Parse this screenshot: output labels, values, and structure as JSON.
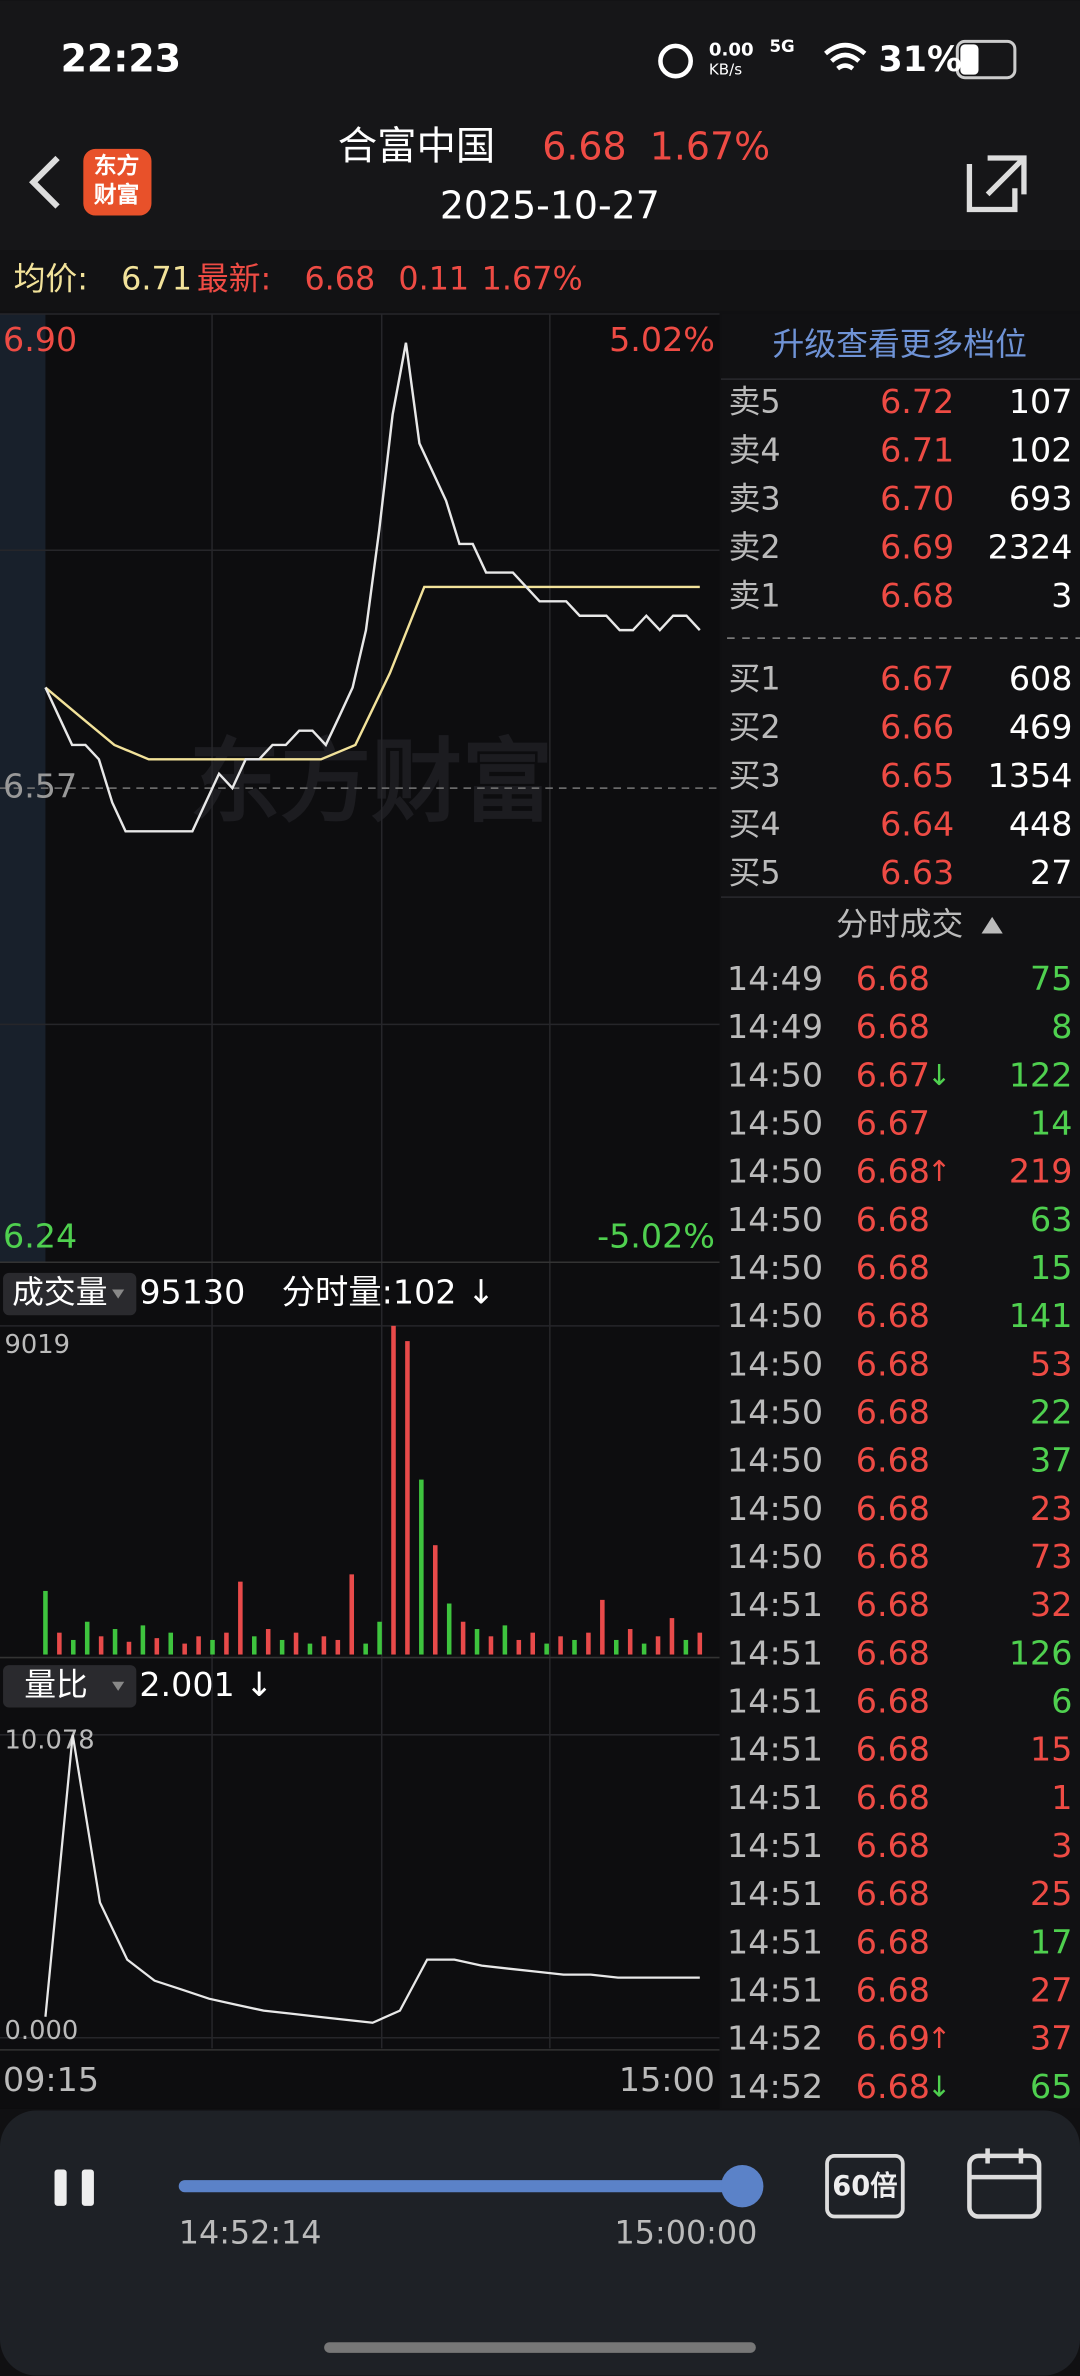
{
  "status_bar": {
    "time": "22:23",
    "net_speed": "0.00",
    "net_unit": "KB/s",
    "signal": "5G",
    "battery": "31%"
  },
  "header": {
    "logo": [
      "东方",
      "财富"
    ],
    "name": "合富中国",
    "price": "6.68",
    "change_pct": "1.67%",
    "date": "2025-10-27"
  },
  "summary": {
    "avg_label": "均价:",
    "avg": "6.71",
    "last_label": "最新:",
    "last": "6.68",
    "change": "0.11",
    "change_pct": "1.67%"
  },
  "price_chart": {
    "watermark": "东方财富",
    "ylim": [
      6.24,
      6.9
    ],
    "yticks": [
      {
        "value": 6.9,
        "label": "6.90"
      },
      {
        "value": 6.57,
        "label": "6.57"
      },
      {
        "value": 6.24,
        "label": "6.24"
      }
    ],
    "top_pct": "5.02%",
    "bottom_pct": "-5.02%",
    "price_color": "#e8e8e8",
    "avg_color": "#f2e29a",
    "price": [
      6.64,
      6.62,
      6.6,
      6.6,
      6.59,
      6.56,
      6.54,
      6.54,
      6.54,
      6.54,
      6.54,
      6.54,
      6.56,
      6.58,
      6.57,
      6.59,
      6.59,
      6.6,
      6.6,
      6.61,
      6.61,
      6.6,
      6.62,
      6.64,
      6.68,
      6.75,
      6.83,
      6.88,
      6.81,
      6.79,
      6.77,
      6.74,
      6.74,
      6.72,
      6.72,
      6.72,
      6.71,
      6.7,
      6.7,
      6.7,
      6.69,
      6.69,
      6.69,
      6.68,
      6.68,
      6.69,
      6.68,
      6.69,
      6.69,
      6.68
    ],
    "avg": [
      6.64,
      6.62,
      6.6,
      6.59,
      6.59,
      6.59,
      6.59,
      6.59,
      6.59,
      6.6,
      6.65,
      6.71,
      6.71,
      6.71,
      6.71,
      6.71,
      6.71,
      6.71,
      6.71,
      6.71
    ]
  },
  "volume": {
    "label": "成交量",
    "total": "95130",
    "sub": "分时量:102 ↓",
    "ylim": [
      0,
      9019
    ],
    "yticks": [
      9019
    ],
    "values": [
      1745,
      600,
      400,
      900,
      500,
      700,
      350,
      800,
      450,
      600,
      300,
      500,
      400,
      600,
      2000,
      500,
      700,
      400,
      600,
      300,
      500,
      400,
      2200,
      300,
      900,
      9019,
      8600,
      4800,
      3000,
      1400,
      900,
      700,
      500,
      800,
      400,
      600,
      300,
      500,
      400,
      600,
      1500,
      400,
      700,
      300,
      500,
      1000,
      400,
      600
    ],
    "colors": [
      "#3ec43e",
      "#e84a4a",
      "#3ec43e",
      "#3ec43e",
      "#e84a4a",
      "#3ec43e",
      "#e84a4a",
      "#3ec43e",
      "#e84a4a",
      "#3ec43e",
      "#e84a4a",
      "#e84a4a",
      "#3ec43e",
      "#e84a4a",
      "#e84a4a",
      "#3ec43e",
      "#e84a4a",
      "#3ec43e",
      "#e84a4a",
      "#3ec43e",
      "#e84a4a",
      "#e84a4a",
      "#e84a4a",
      "#3ec43e",
      "#3ec43e",
      "#e84a4a",
      "#e84a4a",
      "#3ec43e",
      "#e84a4a",
      "#3ec43e",
      "#e84a4a",
      "#3ec43e",
      "#e84a4a",
      "#3ec43e",
      "#e84a4a",
      "#e84a4a",
      "#3ec43e",
      "#e84a4a",
      "#3ec43e",
      "#e84a4a",
      "#e84a4a",
      "#3ec43e",
      "#e84a4a",
      "#3ec43e",
      "#e84a4a",
      "#e84a4a",
      "#3ec43e",
      "#e84a4a"
    ]
  },
  "ratio": {
    "label": "量比",
    "value": "2.001 ↓",
    "ylim": [
      0,
      10.078
    ],
    "yticks": [
      {
        "value": 10.078,
        "label": "10.078"
      },
      {
        "value": 0,
        "label": "0.000"
      }
    ],
    "values": [
      0.7,
      10.078,
      4.5,
      2.6,
      1.9,
      1.6,
      1.3,
      1.1,
      0.9,
      0.8,
      0.7,
      0.6,
      0.5,
      0.9,
      2.6,
      2.6,
      2.4,
      2.3,
      2.2,
      2.1,
      2.1,
      2.0,
      2.0,
      2.0,
      2.001
    ]
  },
  "time_axis": {
    "start": "09:15",
    "end": "15:00"
  },
  "order_book": {
    "upgrade": "升级查看更多档位",
    "asks": [
      {
        "label": "卖5",
        "price": "6.72",
        "volume": "107"
      },
      {
        "label": "卖4",
        "price": "6.71",
        "volume": "102"
      },
      {
        "label": "卖3",
        "price": "6.70",
        "volume": "693"
      },
      {
        "label": "卖2",
        "price": "6.69",
        "volume": "2324"
      },
      {
        "label": "卖1",
        "price": "6.68",
        "volume": "3"
      }
    ],
    "bids": [
      {
        "label": "买1",
        "price": "6.67",
        "volume": "608"
      },
      {
        "label": "买2",
        "price": "6.66",
        "volume": "469"
      },
      {
        "label": "买3",
        "price": "6.65",
        "volume": "1354"
      },
      {
        "label": "买4",
        "price": "6.64",
        "volume": "448"
      },
      {
        "label": "买5",
        "price": "6.63",
        "volume": "27"
      }
    ]
  },
  "trades": {
    "title": "分时成交",
    "rows": [
      {
        "time": "14:49",
        "price": "6.68",
        "volume": "75",
        "color": "#4fd04f"
      },
      {
        "time": "14:49",
        "price": "6.68",
        "volume": "8",
        "color": "#4fd04f"
      },
      {
        "time": "14:50",
        "price": "6.67",
        "arrow": "↓",
        "volume": "122",
        "color": "#4fd04f"
      },
      {
        "time": "14:50",
        "price": "6.67",
        "volume": "14",
        "color": "#4fd04f"
      },
      {
        "time": "14:50",
        "price": "6.68",
        "arrow": "↑",
        "volume": "219",
        "color": "#ee4b44"
      },
      {
        "time": "14:50",
        "price": "6.68",
        "volume": "63",
        "color": "#4fd04f"
      },
      {
        "time": "14:50",
        "price": "6.68",
        "volume": "15",
        "color": "#4fd04f"
      },
      {
        "time": "14:50",
        "price": "6.68",
        "volume": "141",
        "color": "#4fd04f"
      },
      {
        "time": "14:50",
        "price": "6.68",
        "volume": "53",
        "color": "#ee4b44"
      },
      {
        "time": "14:50",
        "price": "6.68",
        "volume": "22",
        "color": "#4fd04f"
      },
      {
        "time": "14:50",
        "price": "6.68",
        "volume": "37",
        "color": "#4fd04f"
      },
      {
        "time": "14:50",
        "price": "6.68",
        "volume": "23",
        "color": "#ee4b44"
      },
      {
        "time": "14:50",
        "price": "6.68",
        "volume": "73",
        "color": "#ee4b44"
      },
      {
        "time": "14:51",
        "price": "6.68",
        "volume": "32",
        "color": "#ee4b44"
      },
      {
        "time": "14:51",
        "price": "6.68",
        "volume": "126",
        "color": "#4fd04f"
      },
      {
        "time": "14:51",
        "price": "6.68",
        "volume": "6",
        "color": "#4fd04f"
      },
      {
        "time": "14:51",
        "price": "6.68",
        "volume": "15",
        "color": "#ee4b44"
      },
      {
        "time": "14:51",
        "price": "6.68",
        "volume": "1",
        "color": "#ee4b44"
      },
      {
        "time": "14:51",
        "price": "6.68",
        "volume": "3",
        "color": "#ee4b44"
      },
      {
        "time": "14:51",
        "price": "6.68",
        "volume": "25",
        "color": "#ee4b44"
      },
      {
        "time": "14:51",
        "price": "6.68",
        "volume": "17",
        "color": "#4fd04f"
      },
      {
        "time": "14:51",
        "price": "6.68",
        "volume": "27",
        "color": "#ee4b44"
      },
      {
        "time": "14:52",
        "price": "6.69",
        "arrow": "↑",
        "volume": "37",
        "color": "#ee4b44"
      },
      {
        "time": "14:52",
        "price": "6.68",
        "arrow": "↓",
        "volume": "65",
        "color": "#4fd04f"
      }
    ]
  },
  "playback": {
    "current": "14:52:14",
    "end": "15:00:00",
    "speed": "60倍"
  }
}
